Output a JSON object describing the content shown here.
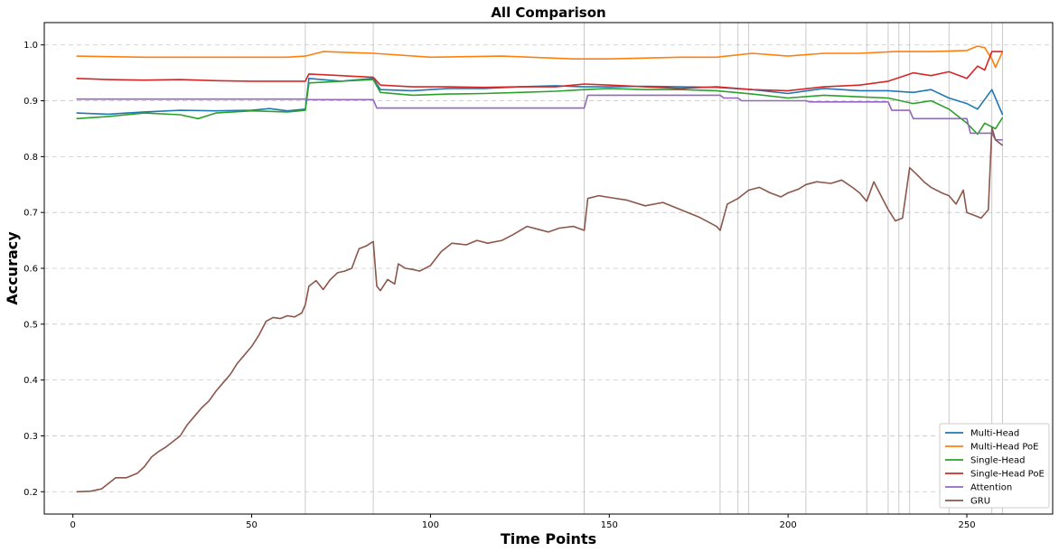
{
  "chart_data": {
    "type": "line",
    "title": "All Comparison",
    "xlabel": "Time Points",
    "ylabel": "Accuracy",
    "xlim": [
      -8,
      274
    ],
    "ylim": [
      0.16,
      1.04
    ],
    "xticks": [
      0,
      50,
      100,
      150,
      200,
      250
    ],
    "xtick_labels": [
      "0",
      "50",
      "100",
      "150",
      "200",
      "250"
    ],
    "yticks": [
      0.2,
      0.3,
      0.4,
      0.5,
      0.6,
      0.7,
      0.8,
      0.9,
      1.0
    ],
    "ytick_labels": [
      "0.2",
      "0.3",
      "0.4",
      "0.5",
      "0.6",
      "0.7",
      "0.8",
      "0.9",
      "1.0"
    ],
    "grid": "horizontal dashed",
    "legend_position": "lower-right",
    "vertical_markers": [
      65,
      84,
      143,
      181,
      186,
      189,
      205,
      222,
      228,
      231,
      234,
      245,
      257,
      260
    ],
    "series": [
      {
        "name": "Multi-Head",
        "color": "#1f77b4",
        "points": [
          [
            1,
            0.878
          ],
          [
            10,
            0.876
          ],
          [
            20,
            0.88
          ],
          [
            30,
            0.883
          ],
          [
            40,
            0.882
          ],
          [
            50,
            0.883
          ],
          [
            55,
            0.886
          ],
          [
            60,
            0.882
          ],
          [
            65,
            0.885
          ],
          [
            66,
            0.94
          ],
          [
            75,
            0.935
          ],
          [
            84,
            0.94
          ],
          [
            86,
            0.92
          ],
          [
            95,
            0.918
          ],
          [
            105,
            0.922
          ],
          [
            115,
            0.922
          ],
          [
            125,
            0.925
          ],
          [
            135,
            0.927
          ],
          [
            143,
            0.925
          ],
          [
            150,
            0.925
          ],
          [
            160,
            0.926
          ],
          [
            170,
            0.925
          ],
          [
            180,
            0.924
          ],
          [
            190,
            0.92
          ],
          [
            200,
            0.913
          ],
          [
            210,
            0.922
          ],
          [
            220,
            0.918
          ],
          [
            228,
            0.918
          ],
          [
            235,
            0.915
          ],
          [
            240,
            0.92
          ],
          [
            245,
            0.905
          ],
          [
            250,
            0.895
          ],
          [
            253,
            0.885
          ],
          [
            257,
            0.92
          ],
          [
            260,
            0.875
          ]
        ]
      },
      {
        "name": "Multi-Head PoE",
        "color": "#ff7f0e",
        "points": [
          [
            1,
            0.98
          ],
          [
            20,
            0.978
          ],
          [
            40,
            0.978
          ],
          [
            60,
            0.978
          ],
          [
            65,
            0.98
          ],
          [
            70,
            0.988
          ],
          [
            84,
            0.985
          ],
          [
            100,
            0.978
          ],
          [
            120,
            0.98
          ],
          [
            140,
            0.975
          ],
          [
            150,
            0.975
          ],
          [
            170,
            0.978
          ],
          [
            180,
            0.978
          ],
          [
            190,
            0.985
          ],
          [
            200,
            0.98
          ],
          [
            210,
            0.985
          ],
          [
            220,
            0.985
          ],
          [
            230,
            0.988
          ],
          [
            240,
            0.988
          ],
          [
            250,
            0.99
          ],
          [
            253,
            0.998
          ],
          [
            255,
            0.995
          ],
          [
            257,
            0.975
          ],
          [
            258,
            0.96
          ],
          [
            260,
            0.988
          ]
        ]
      },
      {
        "name": "Single-Head",
        "color": "#2ca02c",
        "points": [
          [
            1,
            0.868
          ],
          [
            10,
            0.872
          ],
          [
            20,
            0.878
          ],
          [
            30,
            0.875
          ],
          [
            35,
            0.868
          ],
          [
            40,
            0.878
          ],
          [
            50,
            0.882
          ],
          [
            60,
            0.88
          ],
          [
            65,
            0.883
          ],
          [
            66,
            0.932
          ],
          [
            75,
            0.935
          ],
          [
            84,
            0.938
          ],
          [
            86,
            0.915
          ],
          [
            95,
            0.91
          ],
          [
            105,
            0.912
          ],
          [
            115,
            0.913
          ],
          [
            125,
            0.915
          ],
          [
            135,
            0.917
          ],
          [
            143,
            0.92
          ],
          [
            150,
            0.922
          ],
          [
            160,
            0.92
          ],
          [
            170,
            0.92
          ],
          [
            180,
            0.918
          ],
          [
            190,
            0.912
          ],
          [
            200,
            0.905
          ],
          [
            210,
            0.91
          ],
          [
            220,
            0.907
          ],
          [
            228,
            0.905
          ],
          [
            235,
            0.895
          ],
          [
            240,
            0.9
          ],
          [
            245,
            0.885
          ],
          [
            250,
            0.86
          ],
          [
            253,
            0.84
          ],
          [
            255,
            0.86
          ],
          [
            258,
            0.85
          ],
          [
            260,
            0.87
          ]
        ]
      },
      {
        "name": "Single-Head PoE",
        "color": "#d62728",
        "points": [
          [
            1,
            0.94
          ],
          [
            10,
            0.938
          ],
          [
            20,
            0.937
          ],
          [
            30,
            0.938
          ],
          [
            40,
            0.936
          ],
          [
            50,
            0.935
          ],
          [
            60,
            0.935
          ],
          [
            65,
            0.935
          ],
          [
            66,
            0.948
          ],
          [
            75,
            0.945
          ],
          [
            84,
            0.942
          ],
          [
            86,
            0.928
          ],
          [
            95,
            0.925
          ],
          [
            105,
            0.925
          ],
          [
            115,
            0.924
          ],
          [
            125,
            0.925
          ],
          [
            135,
            0.925
          ],
          [
            143,
            0.93
          ],
          [
            150,
            0.928
          ],
          [
            160,
            0.925
          ],
          [
            170,
            0.922
          ],
          [
            180,
            0.925
          ],
          [
            190,
            0.92
          ],
          [
            200,
            0.918
          ],
          [
            210,
            0.925
          ],
          [
            220,
            0.928
          ],
          [
            228,
            0.935
          ],
          [
            235,
            0.95
          ],
          [
            240,
            0.945
          ],
          [
            245,
            0.952
          ],
          [
            250,
            0.94
          ],
          [
            253,
            0.962
          ],
          [
            255,
            0.955
          ],
          [
            257,
            0.988
          ],
          [
            260,
            0.988
          ]
        ]
      },
      {
        "name": "Attention",
        "color": "#9467bd",
        "points": [
          [
            1,
            0.903
          ],
          [
            65,
            0.903
          ],
          [
            66,
            0.902
          ],
          [
            84,
            0.902
          ],
          [
            85,
            0.887
          ],
          [
            143,
            0.887
          ],
          [
            144,
            0.91
          ],
          [
            181,
            0.91
          ],
          [
            182,
            0.905
          ],
          [
            186,
            0.905
          ],
          [
            187,
            0.9
          ],
          [
            205,
            0.9
          ],
          [
            206,
            0.898
          ],
          [
            228,
            0.898
          ],
          [
            229,
            0.883
          ],
          [
            234,
            0.883
          ],
          [
            235,
            0.868
          ],
          [
            250,
            0.868
          ],
          [
            251,
            0.842
          ],
          [
            257,
            0.842
          ],
          [
            258,
            0.83
          ],
          [
            260,
            0.83
          ]
        ]
      },
      {
        "name": "GRU",
        "color": "#8c564b",
        "points": [
          [
            1,
            0.2
          ],
          [
            5,
            0.201
          ],
          [
            8,
            0.205
          ],
          [
            10,
            0.215
          ],
          [
            12,
            0.225
          ],
          [
            15,
            0.225
          ],
          [
            18,
            0.233
          ],
          [
            20,
            0.245
          ],
          [
            22,
            0.262
          ],
          [
            24,
            0.272
          ],
          [
            26,
            0.28
          ],
          [
            28,
            0.29
          ],
          [
            30,
            0.3
          ],
          [
            32,
            0.32
          ],
          [
            34,
            0.335
          ],
          [
            36,
            0.35
          ],
          [
            38,
            0.362
          ],
          [
            40,
            0.38
          ],
          [
            42,
            0.395
          ],
          [
            44,
            0.41
          ],
          [
            46,
            0.43
          ],
          [
            48,
            0.445
          ],
          [
            50,
            0.46
          ],
          [
            52,
            0.48
          ],
          [
            54,
            0.505
          ],
          [
            56,
            0.512
          ],
          [
            58,
            0.51
          ],
          [
            60,
            0.515
          ],
          [
            62,
            0.513
          ],
          [
            64,
            0.52
          ],
          [
            65,
            0.535
          ],
          [
            66,
            0.568
          ],
          [
            68,
            0.578
          ],
          [
            70,
            0.562
          ],
          [
            72,
            0.58
          ],
          [
            74,
            0.592
          ],
          [
            76,
            0.595
          ],
          [
            78,
            0.6
          ],
          [
            80,
            0.635
          ],
          [
            82,
            0.64
          ],
          [
            84,
            0.648
          ],
          [
            85,
            0.568
          ],
          [
            86,
            0.56
          ],
          [
            88,
            0.58
          ],
          [
            90,
            0.572
          ],
          [
            91,
            0.608
          ],
          [
            93,
            0.6
          ],
          [
            95,
            0.598
          ],
          [
            97,
            0.595
          ],
          [
            100,
            0.605
          ],
          [
            103,
            0.63
          ],
          [
            106,
            0.645
          ],
          [
            110,
            0.642
          ],
          [
            113,
            0.65
          ],
          [
            116,
            0.645
          ],
          [
            120,
            0.65
          ],
          [
            123,
            0.66
          ],
          [
            127,
            0.675
          ],
          [
            130,
            0.67
          ],
          [
            133,
            0.665
          ],
          [
            136,
            0.672
          ],
          [
            140,
            0.675
          ],
          [
            143,
            0.668
          ],
          [
            144,
            0.725
          ],
          [
            147,
            0.73
          ],
          [
            150,
            0.727
          ],
          [
            155,
            0.722
          ],
          [
            160,
            0.712
          ],
          [
            165,
            0.718
          ],
          [
            170,
            0.705
          ],
          [
            175,
            0.692
          ],
          [
            180,
            0.675
          ],
          [
            181,
            0.668
          ],
          [
            183,
            0.715
          ],
          [
            186,
            0.725
          ],
          [
            189,
            0.74
          ],
          [
            192,
            0.745
          ],
          [
            195,
            0.735
          ],
          [
            198,
            0.728
          ],
          [
            200,
            0.735
          ],
          [
            203,
            0.742
          ],
          [
            205,
            0.75
          ],
          [
            208,
            0.755
          ],
          [
            212,
            0.752
          ],
          [
            215,
            0.758
          ],
          [
            218,
            0.745
          ],
          [
            220,
            0.735
          ],
          [
            222,
            0.72
          ],
          [
            224,
            0.755
          ],
          [
            226,
            0.73
          ],
          [
            228,
            0.705
          ],
          [
            230,
            0.685
          ],
          [
            232,
            0.69
          ],
          [
            234,
            0.78
          ],
          [
            236,
            0.768
          ],
          [
            238,
            0.755
          ],
          [
            240,
            0.745
          ],
          [
            243,
            0.735
          ],
          [
            245,
            0.73
          ],
          [
            247,
            0.715
          ],
          [
            249,
            0.74
          ],
          [
            250,
            0.7
          ],
          [
            252,
            0.695
          ],
          [
            254,
            0.69
          ],
          [
            256,
            0.705
          ],
          [
            257,
            0.852
          ],
          [
            258,
            0.83
          ],
          [
            260,
            0.82
          ]
        ]
      }
    ]
  }
}
